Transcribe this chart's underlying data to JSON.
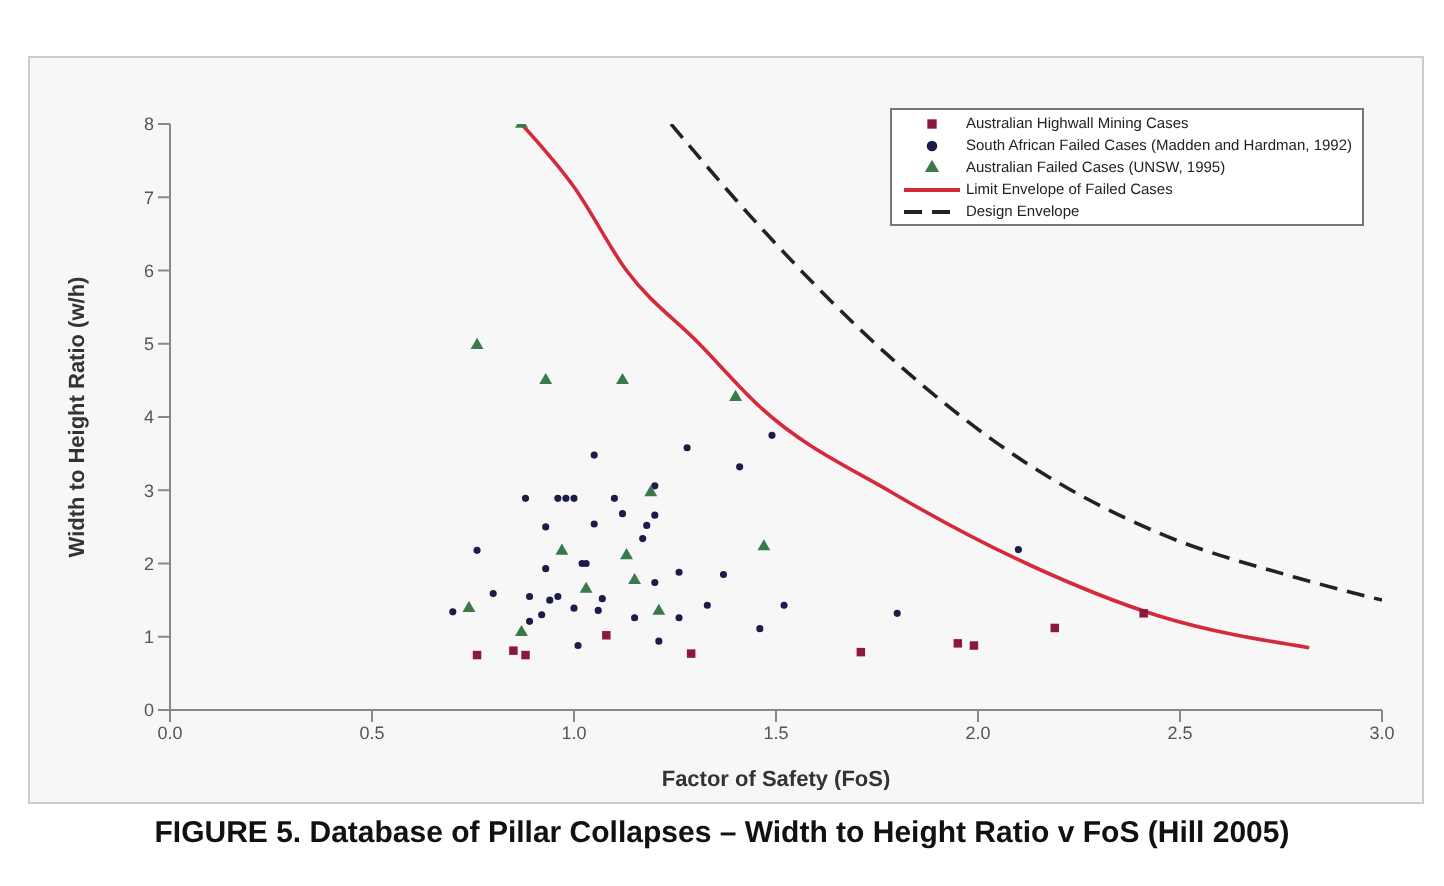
{
  "chart_data": {
    "type": "scatter",
    "xlabel": "Factor of Safety (FoS)",
    "ylabel": "Width to Height Ratio (w/h)",
    "annotations": [
      "FIGURE 5. Database of Pillar Collapses – Width to Height Ratio v FoS (Hill 2005)"
    ],
    "xlim": [
      0,
      3
    ],
    "ylim": [
      0,
      8
    ],
    "xticks": [
      {
        "value": 0,
        "label": "0.0"
      },
      {
        "value": 0.5,
        "label": "0.5"
      },
      {
        "value": 1,
        "label": "1.0"
      },
      {
        "value": 1.5,
        "label": "1.5"
      },
      {
        "value": 2,
        "label": "2.0"
      },
      {
        "value": 2.5,
        "label": "2.5"
      },
      {
        "value": 3,
        "label": "3.0"
      }
    ],
    "yticks": [
      0,
      1,
      2,
      3,
      4,
      5,
      6,
      7,
      8
    ],
    "grid": false,
    "legend": "top right",
    "series": [
      {
        "name": "Australian Highwall Mining Cases",
        "marker": "square",
        "color": "#8b1a3a",
        "x": [
          0.76,
          0.85,
          0.88,
          1.08,
          1.29,
          1.71,
          1.95,
          1.99,
          2.19,
          2.41
        ],
        "values": [
          0.75,
          0.81,
          0.75,
          1.02,
          0.77,
          0.79,
          0.91,
          0.88,
          1.12,
          1.32
        ]
      },
      {
        "name": "South African Failed Cases (Madden and Hardman, 1992)",
        "marker": "circle",
        "color": "#1c1c4a",
        "x": [
          0.7,
          0.76,
          0.8,
          0.88,
          0.93,
          0.93,
          0.89,
          0.89,
          0.92,
          0.94,
          0.96,
          0.96,
          0.98,
          1.0,
          1.0,
          1.01,
          1.02,
          1.03,
          1.05,
          1.05,
          1.07,
          1.06,
          1.1,
          1.12,
          1.15,
          1.17,
          1.18,
          1.2,
          1.2,
          1.2,
          1.21,
          1.26,
          1.26,
          1.28,
          1.33,
          1.37,
          1.41,
          1.46,
          1.49,
          1.52,
          1.8,
          2.1
        ],
        "values": [
          1.34,
          2.18,
          1.59,
          2.89,
          2.5,
          1.93,
          1.55,
          1.21,
          1.3,
          1.5,
          1.55,
          2.89,
          2.89,
          2.89,
          1.39,
          0.88,
          2.0,
          2.0,
          3.48,
          2.54,
          1.52,
          1.36,
          2.89,
          2.68,
          1.26,
          2.34,
          2.52,
          1.74,
          3.06,
          2.66,
          0.94,
          1.88,
          1.26,
          3.58,
          1.43,
          1.85,
          3.32,
          1.11,
          3.75,
          1.43,
          1.32,
          2.19
        ]
      },
      {
        "name": "Australian Failed Cases (UNSW, 1995)",
        "marker": "triangle",
        "color": "#3a7a4a",
        "x": [
          0.87,
          0.76,
          0.93,
          1.12,
          1.4,
          0.74,
          0.87,
          0.97,
          1.03,
          1.13,
          1.15,
          1.19,
          1.21,
          1.47
        ],
        "values": [
          8.0,
          4.98,
          4.5,
          4.5,
          4.27,
          1.39,
          1.06,
          2.17,
          1.65,
          2.11,
          1.77,
          2.97,
          1.35,
          2.23
        ]
      },
      {
        "name": "Limit Envelope of Failed Cases",
        "type": "line",
        "marker": "none",
        "line_style": "solid",
        "color": "#d42a3a",
        "x": [
          0.87,
          1.0,
          1.13,
          1.31,
          1.46,
          1.79,
          2.12,
          2.45,
          2.82
        ],
        "values": [
          8.0,
          7.14,
          6.0,
          5.0,
          4.14,
          2.96,
          2.0,
          1.28,
          0.85
        ]
      },
      {
        "name": "Design Envelope",
        "type": "line",
        "marker": "none",
        "line_style": "dashed",
        "color": "#222222",
        "x": [
          1.24,
          1.46,
          1.79,
          2.12,
          2.45,
          2.78,
          3.0
        ],
        "values": [
          8.0,
          6.6,
          4.78,
          3.37,
          2.41,
          1.82,
          1.5
        ]
      }
    ]
  }
}
